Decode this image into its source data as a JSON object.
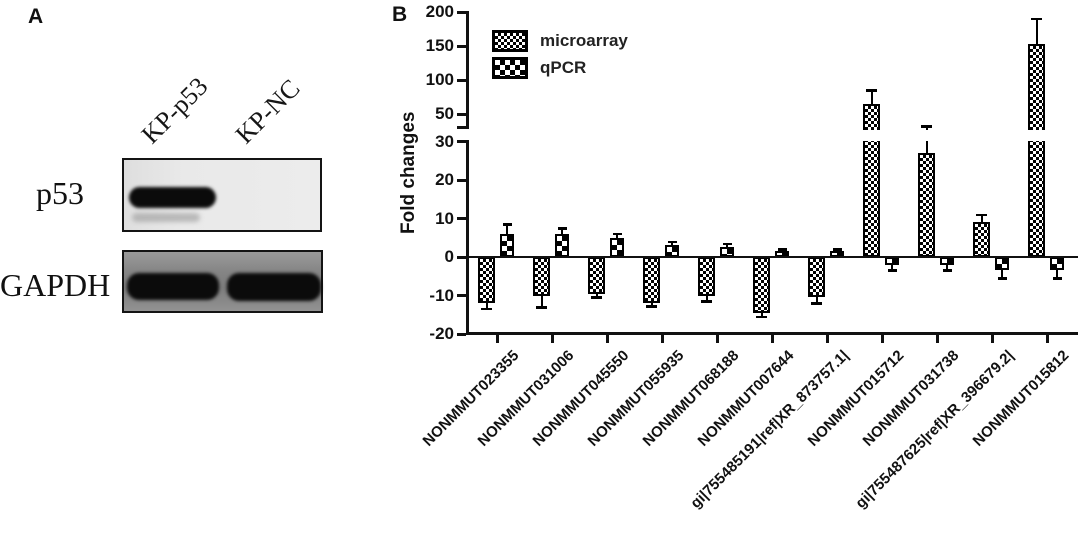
{
  "figure": {
    "panel_a": {
      "label": "A",
      "lane_labels": [
        "KP-p53",
        "KP-NC"
      ],
      "blots": [
        {
          "label": "p53",
          "bands": [
            {
              "lane": "KP-p53",
              "present": true,
              "intensity": "strong",
              "faint_secondary_band": true
            },
            {
              "lane": "KP-NC",
              "present": false,
              "intensity": "none",
              "faint_secondary_band": false
            }
          ]
        },
        {
          "label": "GAPDH",
          "bands": [
            {
              "lane": "KP-p53",
              "present": true,
              "intensity": "strong",
              "faint_secondary_band": false
            },
            {
              "lane": "KP-NC",
              "present": true,
              "intensity": "strong",
              "faint_secondary_band": false
            }
          ]
        }
      ]
    },
    "panel_b": {
      "label": "B"
    }
  },
  "chart_data": {
    "type": "bar",
    "title": "",
    "xlabel": "",
    "ylabel": "Fold changes",
    "grid": false,
    "legend_position": "top-left-inside",
    "colors": {
      "bars": "#000000",
      "background": "#ffffff"
    },
    "patterns": {
      "microarray": "fine-checker",
      "qPCR": "coarse-checker"
    },
    "axis_break": {
      "lower_range": [
        -20,
        30
      ],
      "upper_range": [
        50,
        200
      ],
      "lower_ticks": [
        -20,
        -10,
        0,
        10,
        20,
        30
      ],
      "upper_ticks": [
        50,
        100,
        150,
        200
      ]
    },
    "categories": [
      "NONMMUT023355",
      "NONMMUT031006",
      "NONMMUT045550",
      "NONMMUT055935",
      "NONMMUT068188",
      "NONMMUT007644",
      "gi|755485191|ref|XR_873757.1|",
      "NONMMUT015712",
      "NONMMUT031738",
      "gi|755487625|ref|XR_396679.2|",
      "NONMMUT015812"
    ],
    "series": [
      {
        "name": "microarray",
        "values": [
          -12,
          -10,
          -9.5,
          -12,
          -10,
          -14.5,
          -10.5,
          65,
          27,
          9,
          153
        ],
        "errors": [
          1.5,
          3,
          1,
          0.8,
          1.5,
          1,
          1.5,
          20,
          12,
          2,
          37
        ]
      },
      {
        "name": "qPCR",
        "values": [
          6,
          6,
          5,
          3,
          2.5,
          1.5,
          1.5,
          -2,
          -2,
          -3.5,
          -3.5
        ],
        "errors": [
          2.5,
          1.5,
          1,
          1,
          1,
          0.5,
          0.5,
          1.5,
          1.5,
          2,
          2
        ]
      }
    ]
  }
}
